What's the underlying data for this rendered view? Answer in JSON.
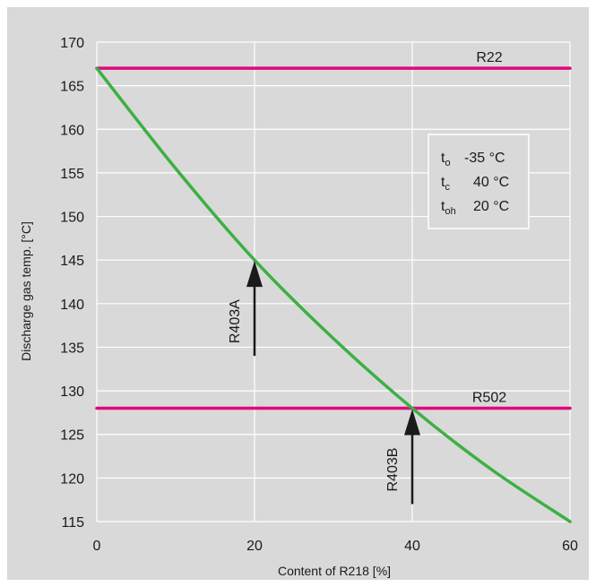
{
  "chart_data": {
    "type": "line",
    "xlabel": "Content of R218  [%]",
    "ylabel": "Discharge  gas temp.  [°C]",
    "xlim": [
      0,
      60
    ],
    "ylim": [
      115,
      170
    ],
    "x_ticks": [
      0,
      20,
      40,
      60
    ],
    "y_ticks": [
      115,
      120,
      125,
      130,
      135,
      140,
      145,
      150,
      155,
      160,
      165,
      170
    ],
    "grid": true,
    "series": [
      {
        "name": "R22",
        "color": "#e0087f",
        "x": [
          0,
          60
        ],
        "y": [
          167,
          167
        ]
      },
      {
        "name": "R502",
        "color": "#e0087f",
        "x": [
          0,
          60
        ],
        "y": [
          128,
          128
        ]
      },
      {
        "name": "",
        "color": "#3cb043",
        "x": [
          0,
          10,
          20,
          30,
          40,
          50,
          60
        ],
        "y": [
          167,
          155.5,
          145,
          136,
          128,
          121,
          115
        ]
      }
    ],
    "annotations": [
      {
        "text": "R403A",
        "x": 20,
        "y_tip": 145,
        "y_tail": 134
      },
      {
        "text": "R403B",
        "x": 40,
        "y_tip": 128,
        "y_tail": 117
      }
    ],
    "conditions": [
      {
        "sym": "t",
        "sub": "o",
        "value": "-35 °C"
      },
      {
        "sym": "t",
        "sub": "c",
        "value": "40 °C"
      },
      {
        "sym": "t",
        "sub": "oh",
        "value": "20 °C"
      }
    ],
    "colors": {
      "panel": "#d9d9d9",
      "frame": "#ffffff",
      "grid": "#ffffff",
      "reference_line": "#e0087f",
      "curve": "#3cb043",
      "arrow": "#1a1a1a"
    }
  }
}
